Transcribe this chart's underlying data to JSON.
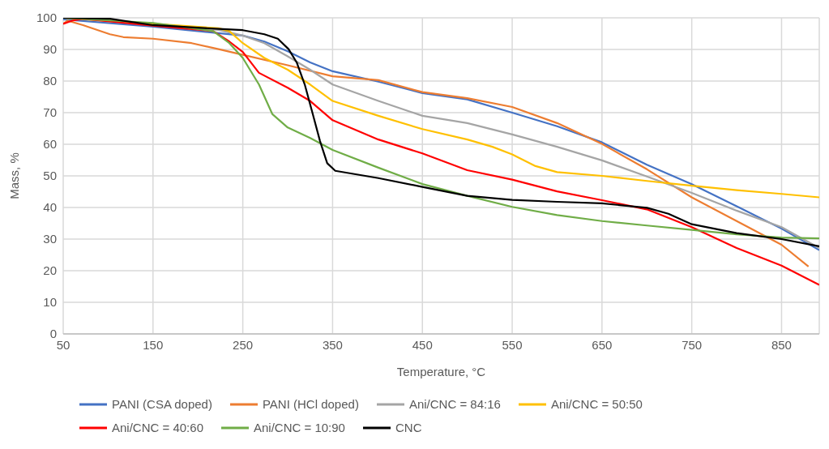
{
  "chart_data": {
    "type": "line",
    "xlabel": "Temperature, °C",
    "ylabel": "Mass, %",
    "xlim": [
      50,
      892
    ],
    "xticks": [
      50,
      150,
      250,
      350,
      450,
      550,
      650,
      750,
      850
    ],
    "ylim": [
      0,
      100
    ],
    "yticks": [
      0,
      10,
      20,
      30,
      40,
      50,
      60,
      70,
      80,
      90,
      100
    ],
    "grid": true,
    "legend": "bottom",
    "marker": "none",
    "line_style": "solid",
    "series": [
      {
        "name": "PANI (CSA doped)",
        "color": "#4472c4",
        "x": [
          50,
          150,
          250,
          274,
          300,
          325,
          350,
          401,
          450,
          500,
          550,
          600,
          650,
          700,
          750,
          800,
          850,
          892
        ],
        "values": [
          99.5,
          97.2,
          94.4,
          92.5,
          89.4,
          85.9,
          83.1,
          79.8,
          76.2,
          74.2,
          70,
          65.7,
          60.6,
          53.5,
          47.4,
          40.4,
          33.3,
          26.5
        ]
      },
      {
        "name": "PANI (HCl doped)",
        "color": "#ed7d31",
        "x": [
          50,
          55,
          72,
          102,
          117,
          150,
          193,
          223,
          250,
          300,
          350,
          401,
          450,
          500,
          550,
          600,
          650,
          700,
          750,
          800,
          850,
          880
        ],
        "values": [
          98.1,
          99.1,
          97.7,
          94.8,
          93.9,
          93.4,
          92,
          90.1,
          88.3,
          85,
          81.5,
          80.3,
          76.5,
          74.6,
          71.8,
          66.7,
          60.1,
          52.1,
          43.2,
          35.7,
          28.2,
          21.3
        ]
      },
      {
        "name": "Ani/CNC = 84:16",
        "color": "#a5a5a5",
        "x": [
          50,
          150,
          223,
          250,
          274,
          300,
          325,
          350,
          401,
          450,
          500,
          550,
          600,
          650,
          700,
          750,
          800,
          850,
          892
        ],
        "values": [
          100,
          97.8,
          96.2,
          94.4,
          92,
          87.8,
          83.6,
          78.9,
          73.7,
          69,
          66.7,
          63.1,
          59.2,
          54.9,
          49.8,
          44.6,
          39,
          33.8,
          27.2
        ]
      },
      {
        "name": "Ani/CNC = 50:50",
        "color": "#ffc000",
        "x": [
          50,
          150,
          223,
          235,
          250,
          274,
          300,
          325,
          350,
          401,
          450,
          500,
          528,
          550,
          576,
          600,
          650,
          700,
          750,
          800,
          850,
          892
        ],
        "values": [
          100,
          98.1,
          96.7,
          95.8,
          92,
          87.3,
          83.6,
          78.9,
          73.7,
          69,
          64.8,
          61.5,
          59.2,
          56.8,
          53.1,
          51.2,
          50,
          48.4,
          46.9,
          45.5,
          44.3,
          43.2
        ]
      },
      {
        "name": "Ani/CNC = 40:60",
        "color": "#ff0000",
        "x": [
          50,
          60,
          72,
          150,
          217,
          235,
          250,
          268,
          300,
          325,
          350,
          401,
          450,
          500,
          550,
          600,
          650,
          700,
          750,
          800,
          850,
          892
        ],
        "values": [
          98.1,
          99.1,
          99.7,
          97.5,
          95.8,
          92.5,
          89.2,
          82.6,
          77.9,
          73.7,
          67.6,
          61.5,
          57.1,
          51.8,
          48.8,
          45.1,
          42.3,
          39.4,
          33.8,
          27.2,
          21.6,
          15.5
        ]
      },
      {
        "name": "Ani/CNC = 10:90",
        "color": "#70ad47",
        "x": [
          50,
          150,
          217,
          235,
          250,
          268,
          283,
          300,
          325,
          350,
          401,
          450,
          500,
          550,
          600,
          650,
          700,
          750,
          800,
          850,
          892
        ],
        "values": [
          100,
          98.4,
          95.8,
          92,
          87.3,
          78.9,
          69.5,
          65.3,
          62,
          58.2,
          52.6,
          47.4,
          43.7,
          40.2,
          37.6,
          35.7,
          34.3,
          32.9,
          31.5,
          30.5,
          30.2
        ]
      },
      {
        "name": "CNC",
        "color": "#000000",
        "x": [
          50,
          102,
          150,
          223,
          250,
          274,
          289,
          301,
          310,
          319,
          328,
          336,
          344,
          353,
          401,
          450,
          500,
          550,
          600,
          650,
          700,
          724,
          750,
          800,
          850,
          892
        ],
        "values": [
          100,
          99.7,
          97.7,
          96.5,
          96.1,
          94.8,
          93.4,
          90.1,
          85.9,
          78.9,
          69.5,
          61,
          54,
          51.6,
          49.3,
          46.5,
          43.7,
          42.4,
          41.8,
          41.3,
          39.9,
          38,
          34.7,
          31.9,
          30,
          27.7
        ]
      }
    ]
  }
}
